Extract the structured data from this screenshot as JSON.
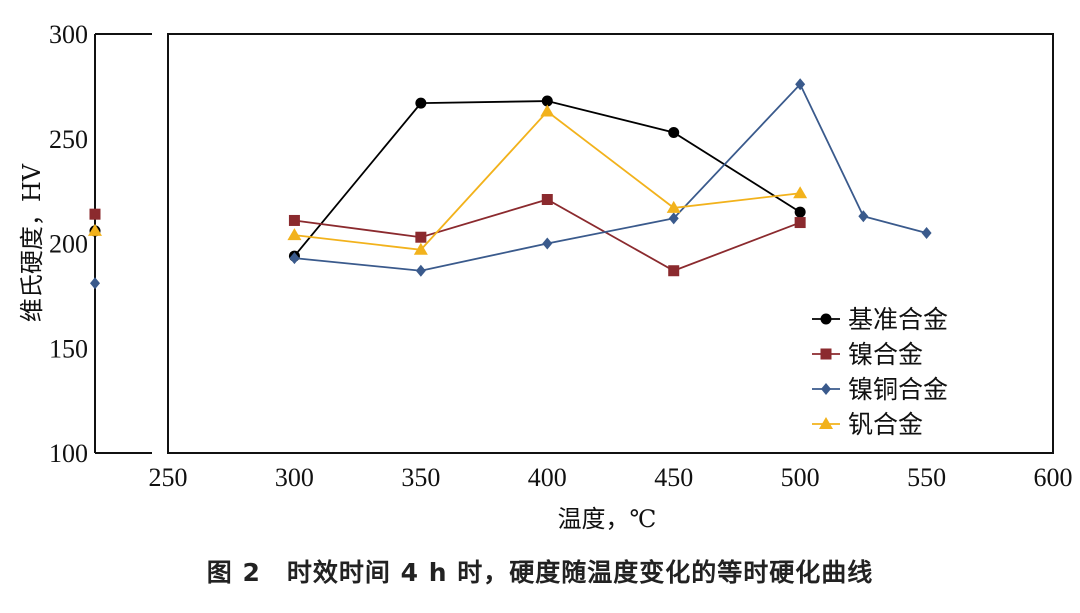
{
  "chart_data": {
    "type": "line",
    "xlabel": "温度，℃",
    "ylabel": "维氏硬度，HV",
    "xlim": [
      250,
      600
    ],
    "ylim": [
      100,
      300
    ],
    "x_ticks": [
      250,
      300,
      350,
      400,
      450,
      500,
      550,
      600
    ],
    "y_ticks": [
      100,
      150,
      200,
      250,
      300
    ],
    "legend_position": "bottom-right",
    "grid": false,
    "series": [
      {
        "name": "基准合金",
        "color": "#000000",
        "marker": "circle",
        "initial": 206,
        "points": [
          [
            300,
            194
          ],
          [
            350,
            267
          ],
          [
            400,
            268
          ],
          [
            450,
            253
          ],
          [
            500,
            215
          ]
        ]
      },
      {
        "name": "镍合金",
        "color": "#8b2a2e",
        "marker": "square",
        "initial": 214,
        "points": [
          [
            300,
            211
          ],
          [
            350,
            203
          ],
          [
            400,
            221
          ],
          [
            450,
            187
          ],
          [
            500,
            210
          ]
        ]
      },
      {
        "name": "镍铜合金",
        "color": "#3a5a8c",
        "marker": "diamond",
        "initial": 181,
        "points": [
          [
            300,
            193
          ],
          [
            350,
            187
          ],
          [
            400,
            200
          ],
          [
            450,
            212
          ],
          [
            500,
            276
          ],
          [
            525,
            213
          ],
          [
            550,
            205
          ]
        ]
      },
      {
        "name": "钒合金",
        "color": "#f2b21c",
        "marker": "triangle",
        "initial": 206,
        "points": [
          [
            300,
            204
          ],
          [
            350,
            197
          ],
          [
            400,
            263
          ],
          [
            450,
            217
          ],
          [
            500,
            224
          ]
        ]
      }
    ]
  },
  "caption": "图 2　时效时间 4 h 时，硬度随温度变化的等时硬化曲线"
}
